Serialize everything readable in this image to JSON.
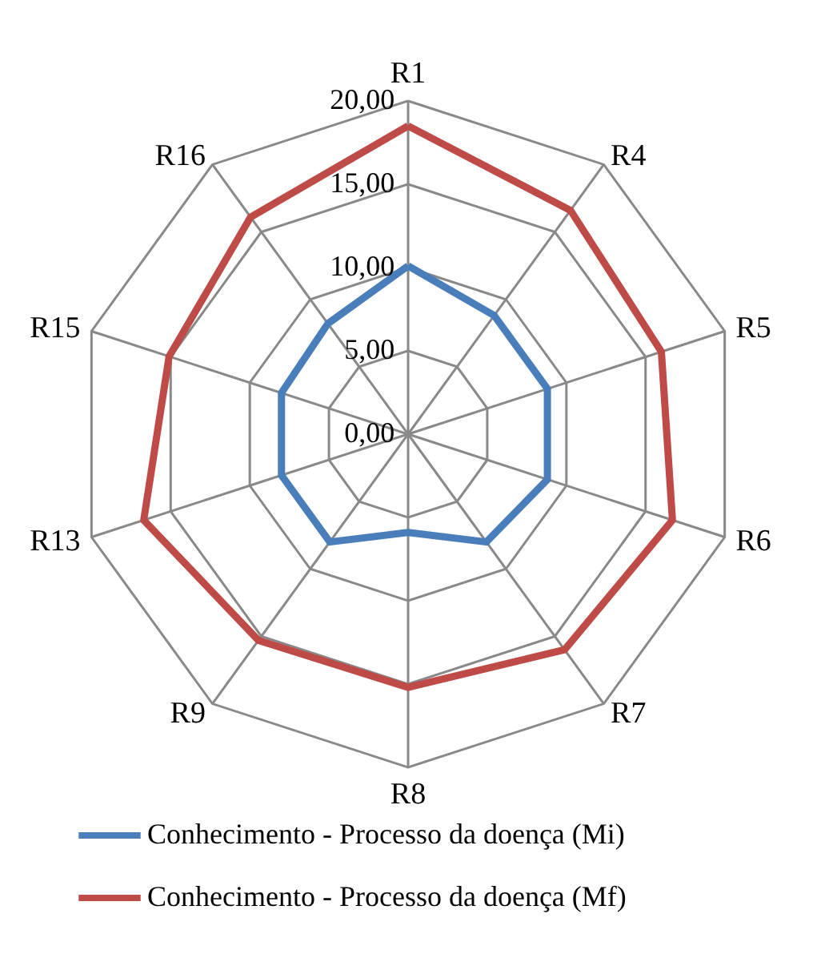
{
  "chart_data": {
    "type": "radar",
    "categories": [
      "R1",
      "R4",
      "R5",
      "R6",
      "R7",
      "R8",
      "R9",
      "R13",
      "R15",
      "R16"
    ],
    "series": [
      {
        "name": "Conhecimento - Processo da doença (Mi)",
        "color": "#4a7ebb",
        "values": [
          10.1,
          8.8,
          8.8,
          8.8,
          8.0,
          5.9,
          8.0,
          8.0,
          8.0,
          8.2
        ]
      },
      {
        "name": "Conhecimento - Processo da doença (Mf)",
        "color": "#be4b48",
        "values": [
          18.5,
          16.6,
          16.0,
          16.7,
          16.0,
          15.2,
          15.3,
          16.7,
          15.1,
          16.1
        ]
      }
    ],
    "ylim": [
      0,
      20
    ],
    "yticks": [
      {
        "value": 0,
        "label": "0,00"
      },
      {
        "value": 5,
        "label": "5,00"
      },
      {
        "value": 10,
        "label": "10,00"
      },
      {
        "value": 15,
        "label": "15,00"
      },
      {
        "value": 20,
        "label": "20,00"
      }
    ],
    "grid": true,
    "legend": "bottom",
    "marker": "none"
  }
}
